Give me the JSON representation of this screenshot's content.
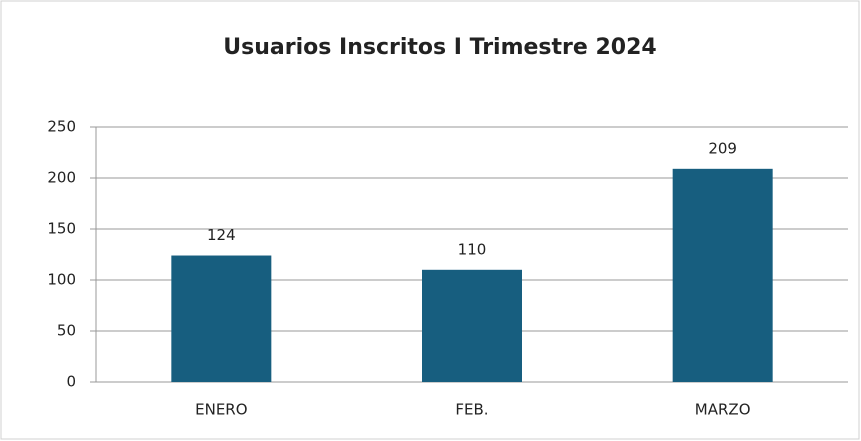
{
  "chart_data": {
    "type": "bar",
    "title": "Usuarios Inscritos I Trimestre 2024",
    "categories": [
      "ENERO",
      "FEB.",
      "MARZO"
    ],
    "values": [
      124,
      110,
      209
    ],
    "color": "#175e7f",
    "ylim": [
      0,
      250
    ],
    "yticks": [
      0,
      50,
      100,
      150,
      200,
      250
    ],
    "grid": true
  }
}
